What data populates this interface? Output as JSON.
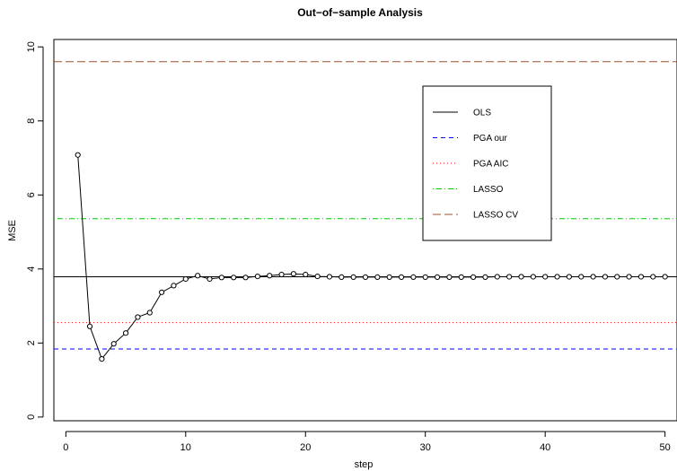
{
  "chart_data": {
    "type": "line",
    "title": "Out−of−sample Analysis",
    "xlabel": "step",
    "ylabel": "MSE",
    "xlim": [
      -1,
      51
    ],
    "ylim": [
      -0.1,
      10.2
    ],
    "x_ticks": [
      0,
      10,
      20,
      30,
      40,
      50
    ],
    "y_ticks": [
      0,
      2,
      4,
      6,
      8,
      10
    ],
    "grid": false,
    "legend_position": "top-right",
    "series": [
      {
        "kind": "line-points",
        "color": "#000000",
        "x": [
          1,
          2,
          3,
          4,
          5,
          6,
          7,
          8,
          9,
          10,
          11,
          12,
          13,
          14,
          15,
          16,
          17,
          18,
          19,
          20,
          21,
          22,
          23,
          24,
          25,
          26,
          27,
          28,
          29,
          30,
          31,
          32,
          33,
          34,
          35,
          36,
          37,
          38,
          39,
          40,
          41,
          42,
          43,
          44,
          45,
          46,
          47,
          48,
          49,
          50
        ],
        "values": [
          7.08,
          2.45,
          1.57,
          1.98,
          2.27,
          2.7,
          2.82,
          3.37,
          3.55,
          3.73,
          3.82,
          3.73,
          3.77,
          3.77,
          3.77,
          3.8,
          3.82,
          3.85,
          3.87,
          3.85,
          3.8,
          3.79,
          3.78,
          3.78,
          3.78,
          3.78,
          3.78,
          3.78,
          3.78,
          3.78,
          3.78,
          3.78,
          3.78,
          3.78,
          3.78,
          3.79,
          3.79,
          3.79,
          3.79,
          3.79,
          3.79,
          3.79,
          3.79,
          3.79,
          3.79,
          3.79,
          3.79,
          3.79,
          3.79,
          3.79
        ]
      }
    ],
    "reference_lines": [
      {
        "name": "OLS",
        "value": 3.79,
        "color": "#000000",
        "dash": "solid"
      },
      {
        "name": "PGA our",
        "value": 1.84,
        "color": "#0000ff",
        "dash": "dashed"
      },
      {
        "name": "PGA AIC",
        "value": 2.55,
        "color": "#ff0000",
        "dash": "dotted"
      },
      {
        "name": "LASSO",
        "value": 5.36,
        "color": "#00cd00",
        "dash": "dotdash"
      },
      {
        "name": "LASSO CV",
        "value": 9.6,
        "color": "#a0522d",
        "dash": "longdash"
      }
    ]
  }
}
